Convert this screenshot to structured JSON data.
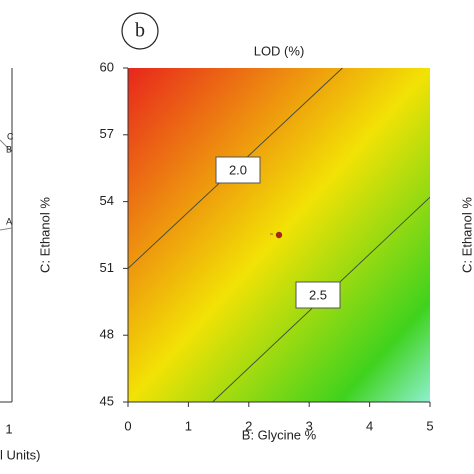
{
  "chart_data": {
    "type": "contour",
    "panel_label": "b",
    "title": "LOD (%)",
    "x_label": "B: Glycine %",
    "y_label": "C: Ethanol %",
    "xlim": [
      0,
      5
    ],
    "xticks": [
      0,
      1,
      2,
      3,
      4,
      5
    ],
    "ylim": [
      45,
      60
    ],
    "yticks": [
      45,
      48,
      51,
      54,
      57,
      60
    ],
    "colors": [
      "#e8261c",
      "#f2e205",
      "#3fd21e",
      "#8ff0d0"
    ],
    "contours": [
      {
        "level": 2,
        "value_label": "2.0",
        "x": [
          0,
          3.55
        ],
        "y": [
          51,
          60
        ]
      },
      {
        "level": 2.5,
        "value_label": "2.5",
        "x": [
          1.4,
          5
        ],
        "y": [
          45,
          54.2
        ]
      }
    ],
    "point": {
      "x": 2.5,
      "y": 52.5,
      "color": "#a0281e"
    },
    "left_panel": {
      "tick": "1",
      "axis_label": "l Units)",
      "line_labels": [
        "C",
        "B",
        "A"
      ]
    },
    "right_panel": {
      "axis_label": "C: Ethanol %"
    }
  }
}
